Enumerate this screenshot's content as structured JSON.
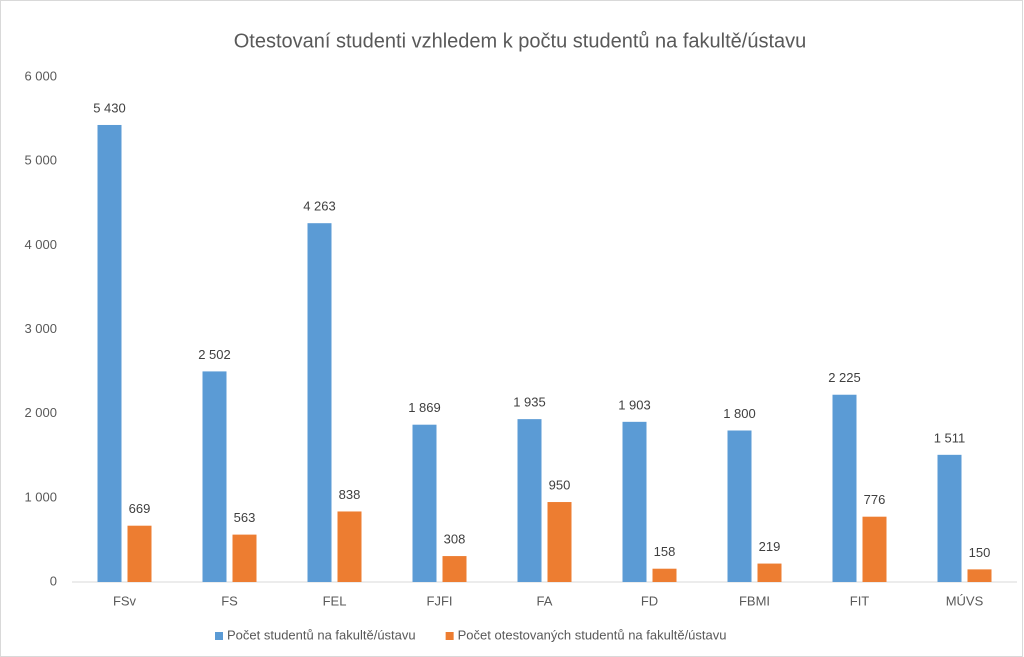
{
  "chart_data": {
    "type": "bar",
    "title": "Otestovaní studenti vzhledem k počtu studentů na fakultě/ústavu",
    "categories": [
      "FSv",
      "FS",
      "FEL",
      "FJFI",
      "FA",
      "FD",
      "FBMI",
      "FIT",
      "MÚVS"
    ],
    "series": [
      {
        "name": "Počet studentů na fakultě/ústavu",
        "color": "#5b9bd5",
        "values": [
          5430,
          2502,
          4263,
          1869,
          1935,
          1903,
          1800,
          2225,
          1511
        ],
        "value_labels": [
          "5 430",
          "2 502",
          "4 263",
          "1 869",
          "1 935",
          "1 903",
          "1 800",
          "2 225",
          "1 511"
        ]
      },
      {
        "name": "Počet otestovaných studentů na fakultě/ústavu",
        "color": "#ed7d31",
        "values": [
          669,
          563,
          838,
          308,
          950,
          158,
          219,
          776,
          150
        ]
      }
    ],
    "ylim": [
      0,
      6000
    ],
    "yticks": [
      0,
      {
        "value": 1000,
        "label": "1 000"
      },
      {
        "value": 2000,
        "label": "2 000"
      },
      {
        "value": 3000,
        "label": "3 000"
      },
      {
        "value": 4000,
        "label": "4 000"
      },
      {
        "value": 5000,
        "label": "5 000"
      },
      {
        "value": 6000,
        "label": "6 000"
      }
    ],
    "grid": false,
    "legend": "bottom"
  }
}
